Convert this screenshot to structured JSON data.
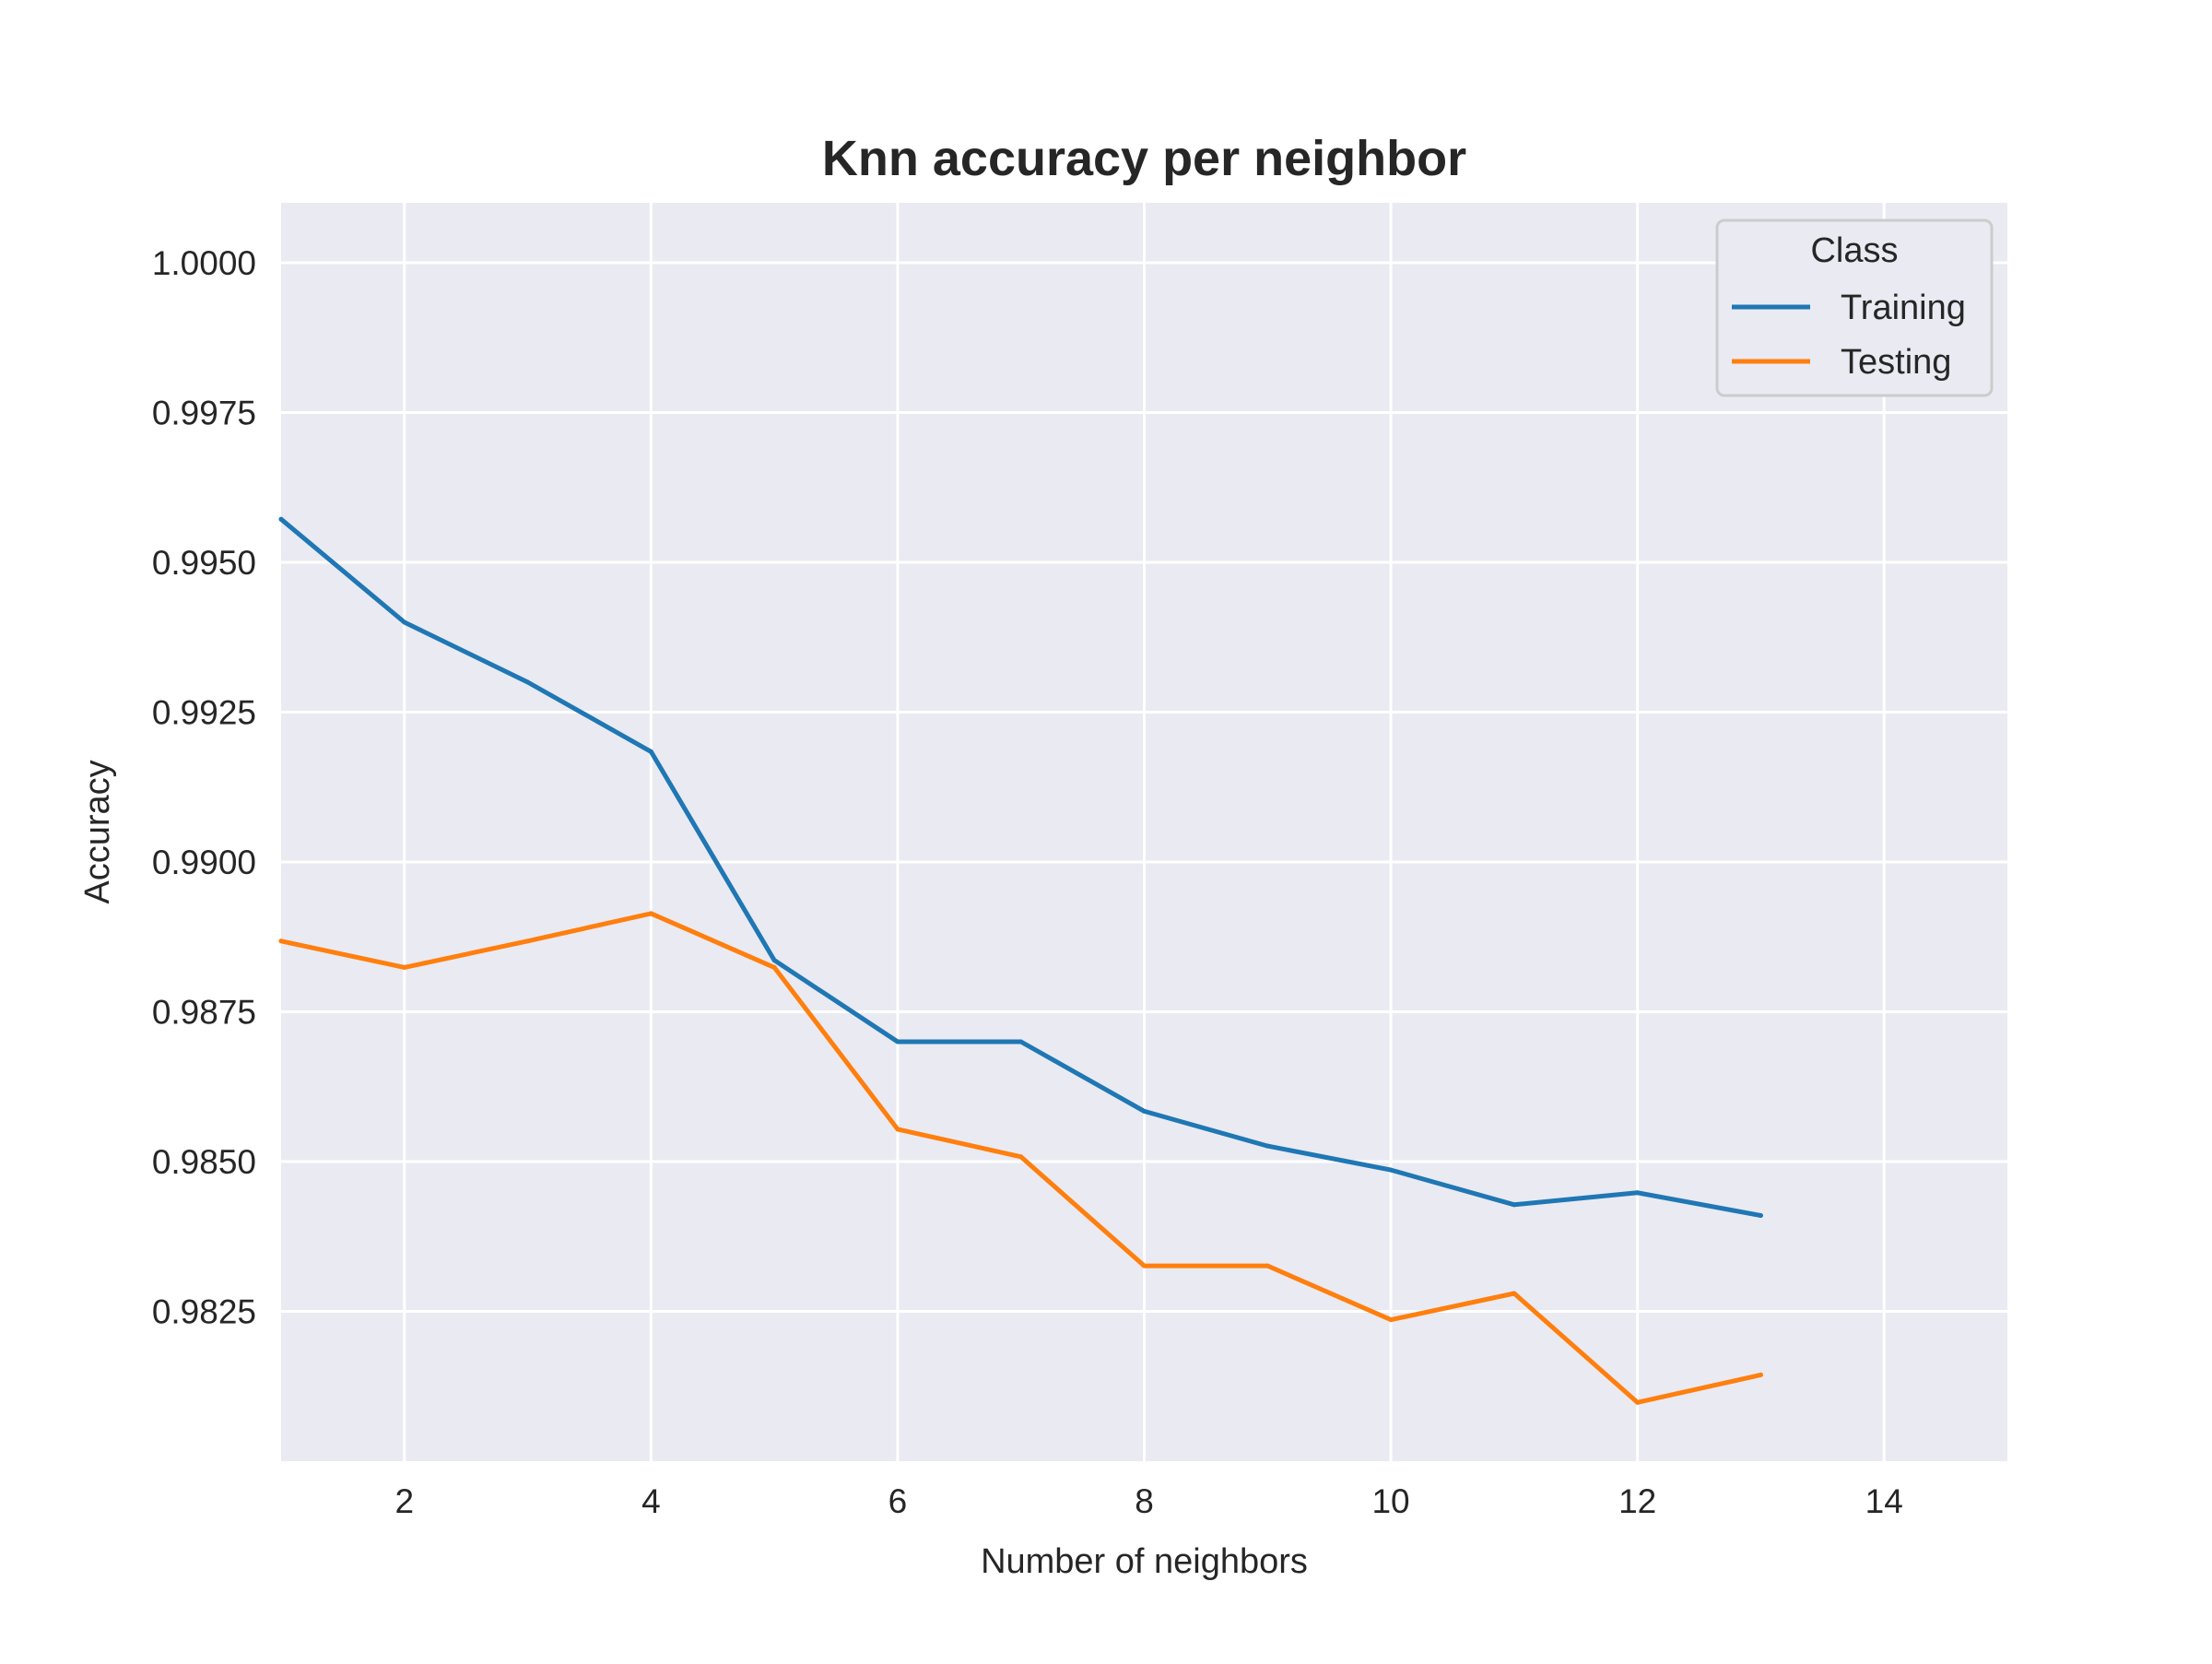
{
  "chart_data": {
    "type": "line",
    "title": "Knn accuracy per neighbor",
    "xlabel": "Number of neighbors",
    "ylabel": "Accuracy",
    "xlim": [
      1,
      15
    ],
    "ylim": [
      0.98,
      1.001
    ],
    "x_ticks": [
      2,
      4,
      6,
      8,
      10,
      12,
      14
    ],
    "y_ticks": [
      0.9825,
      0.985,
      0.9875,
      0.99,
      0.9925,
      0.995,
      0.9975,
      1.0
    ],
    "y_tick_labels": [
      "0.9825",
      "0.9850",
      "0.9875",
      "0.9900",
      "0.9925",
      "0.9950",
      "0.9975",
      "1.0000"
    ],
    "x_tick_labels": [
      "2",
      "4",
      "6",
      "8",
      "10",
      "12",
      "14"
    ],
    "grid": true,
    "legend": {
      "title": "Class",
      "placement": "top-right"
    },
    "x": [
      1,
      2,
      3,
      4,
      5,
      6,
      7,
      8,
      9,
      10,
      11,
      12,
      13
    ],
    "series": [
      {
        "name": "Training",
        "color": "#1f77b4",
        "values": [
          0.99572,
          0.994,
          0.993,
          0.99184,
          0.98836,
          0.987,
          0.987,
          0.98584,
          0.98526,
          0.98486,
          0.98428,
          0.98448,
          0.9841
        ]
      },
      {
        "name": "Testing",
        "color": "#ff7f0e",
        "values": [
          0.98868,
          0.98824,
          0.98868,
          0.98914,
          0.98824,
          0.98554,
          0.98508,
          0.98326,
          0.98326,
          0.98236,
          0.9828,
          0.98098,
          0.98144
        ]
      }
    ],
    "colors": {
      "plot_background": "#eaeaf2",
      "grid": "#ffffff"
    }
  }
}
